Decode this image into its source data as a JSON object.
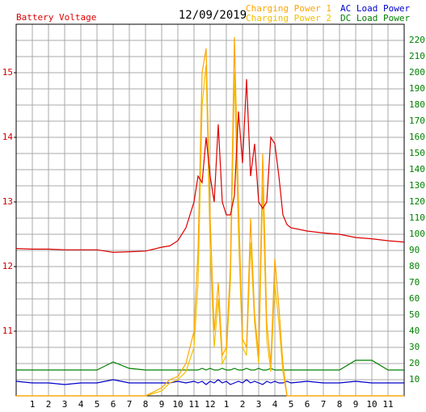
{
  "chart_data": {
    "type": "line",
    "title": "12/09/2019",
    "x": [
      0,
      1,
      2,
      3,
      4,
      5,
      6,
      7,
      8,
      9,
      9.5,
      10,
      10.5,
      11,
      11.25,
      11.5,
      11.75,
      12,
      12.25,
      12.5,
      12.75,
      13,
      13.25,
      13.5,
      13.75,
      14,
      14.25,
      14.5,
      14.75,
      15,
      15.25,
      15.5,
      15.75,
      16,
      16.25,
      16.5,
      16.75,
      17,
      18,
      19,
      20,
      21,
      22,
      23,
      24
    ],
    "xlim": [
      0,
      24
    ],
    "xticks": [
      {
        "value": 1,
        "label": "1"
      },
      {
        "value": 2,
        "label": "2"
      },
      {
        "value": 3,
        "label": "3"
      },
      {
        "value": 4,
        "label": "4"
      },
      {
        "value": 5,
        "label": "5"
      },
      {
        "value": 6,
        "label": "6"
      },
      {
        "value": 7,
        "label": "7"
      },
      {
        "value": 8,
        "label": "8"
      },
      {
        "value": 9,
        "label": "9"
      },
      {
        "value": 10,
        "label": "10"
      },
      {
        "value": 11,
        "label": "11"
      },
      {
        "value": 12,
        "label": "12"
      },
      {
        "value": 13,
        "label": "1"
      },
      {
        "value": 14,
        "label": "2"
      },
      {
        "value": 15,
        "label": "3"
      },
      {
        "value": 16,
        "label": "4"
      },
      {
        "value": 17,
        "label": "5"
      },
      {
        "value": 18,
        "label": "6"
      },
      {
        "value": 19,
        "label": "7"
      },
      {
        "value": 20,
        "label": "8"
      },
      {
        "value": 21,
        "label": "9"
      },
      {
        "value": 22,
        "label": "10"
      },
      {
        "value": 23,
        "label": "11"
      }
    ],
    "ylim": [
      10,
      15.75
    ],
    "yticks": [
      11,
      12,
      13,
      14,
      15
    ],
    "ytick_color": "#cc0000",
    "y2lim": [
      0,
      230
    ],
    "y2ticks": [
      10,
      20,
      30,
      40,
      50,
      60,
      70,
      80,
      90,
      100,
      110,
      120,
      130,
      140,
      150,
      160,
      170,
      180,
      190,
      200,
      210,
      220
    ],
    "y2tick_color": "#008000",
    "grid": true,
    "series": [
      {
        "name": "Battery Voltage",
        "color": "#dd0000",
        "axis": "y",
        "values": [
          12.28,
          12.27,
          12.27,
          12.26,
          12.26,
          12.26,
          12.22,
          12.23,
          12.24,
          12.3,
          12.32,
          12.4,
          12.6,
          13.0,
          13.4,
          13.3,
          14.0,
          13.4,
          13.0,
          14.2,
          13.0,
          12.8,
          12.8,
          13.1,
          14.4,
          13.6,
          14.9,
          13.4,
          13.9,
          13.0,
          12.9,
          13.0,
          14.0,
          13.9,
          13.4,
          12.8,
          12.65,
          12.6,
          12.55,
          12.52,
          12.5,
          12.45,
          12.43,
          12.4,
          12.38
        ]
      },
      {
        "name": "Charging Power 1",
        "color": "#ffa500",
        "axis": "y2",
        "values": [
          0,
          0,
          0,
          0,
          0,
          0,
          0,
          0,
          0,
          5,
          10,
          12,
          20,
          40,
          90,
          200,
          215,
          110,
          40,
          70,
          25,
          30,
          80,
          222,
          120,
          35,
          30,
          110,
          50,
          25,
          150,
          45,
          20,
          85,
          55,
          20,
          0,
          0,
          0,
          0,
          0,
          0,
          0,
          0,
          0
        ]
      },
      {
        "name": "Charging Power 2",
        "color": "#f0c000",
        "axis": "y2",
        "values": [
          0,
          0,
          0,
          0,
          0,
          0,
          0,
          0,
          0,
          3,
          8,
          10,
          15,
          30,
          70,
          180,
          205,
          90,
          30,
          60,
          20,
          25,
          70,
          200,
          100,
          30,
          25,
          95,
          45,
          20,
          130,
          35,
          15,
          70,
          45,
          15,
          0,
          0,
          0,
          0,
          0,
          0,
          0,
          0,
          0
        ]
      },
      {
        "name": "AC Load Power",
        "color": "#0000cc",
        "axis": "y2",
        "values": [
          9,
          8,
          8,
          7,
          8,
          8,
          10,
          8,
          8,
          8,
          8,
          9,
          8,
          9,
          8,
          9,
          7,
          9,
          8,
          10,
          8,
          9,
          7,
          8,
          9,
          8,
          10,
          8,
          9,
          8,
          7,
          9,
          8,
          9,
          8,
          8,
          9,
          8,
          9,
          8,
          8,
          9,
          8,
          8,
          8
        ]
      },
      {
        "name": "DC Load Power",
        "color": "#008000",
        "axis": "y2",
        "values": [
          16,
          16,
          16,
          16,
          16,
          16,
          21,
          17,
          16,
          16,
          16,
          16,
          16,
          16,
          16,
          17,
          16,
          17,
          16,
          16,
          17,
          16,
          16,
          17,
          16,
          16,
          17,
          16,
          16,
          17,
          16,
          16,
          17,
          16,
          16,
          16,
          16,
          16,
          16,
          16,
          16,
          22,
          22,
          16,
          16
        ]
      }
    ]
  }
}
